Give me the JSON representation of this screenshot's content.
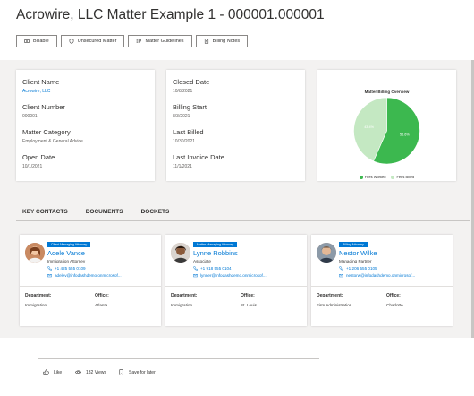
{
  "page": {
    "title": "Acrowire, LLC Matter Example 1 - 000001.000001"
  },
  "toolbar": {
    "buttons": [
      {
        "label": "Billable",
        "icon": "billable-icon"
      },
      {
        "label": "Unsecured Matter",
        "icon": "shield-icon"
      },
      {
        "label": "Matter Guidelines",
        "icon": "guidelines-icon"
      },
      {
        "label": "Billing Notes",
        "icon": "document-icon"
      }
    ]
  },
  "details": {
    "left": [
      {
        "label": "Client Name",
        "value": "Acrowire, LLC",
        "link": true
      },
      {
        "label": "Client Number",
        "value": "000001"
      },
      {
        "label": "Matter Category",
        "value": "Employment & General Advice"
      },
      {
        "label": "Open Date",
        "value": "10/1/2021"
      }
    ],
    "right": [
      {
        "label": "Closed Date",
        "value": "10/8/2021"
      },
      {
        "label": "Billing Start",
        "value": "8/3/2021"
      },
      {
        "label": "Last Billed",
        "value": "10/30/2021"
      },
      {
        "label": "Last Invoice Date",
        "value": "11/1/2021"
      }
    ]
  },
  "chart_data": {
    "type": "pie",
    "title": "Matter Billing Overview",
    "slices": [
      {
        "name": "Fees Worked",
        "value": 56.6,
        "label": "56.6%",
        "color": "#3cb84f"
      },
      {
        "name": "Fees Billed",
        "value": 43.4,
        "label": "43.4%",
        "color": "#c4e8c2"
      }
    ],
    "legend_position": "bottom"
  },
  "tabs": [
    {
      "label": "KEY CONTACTS",
      "active": true
    },
    {
      "label": "DOCUMENTS",
      "active": false
    },
    {
      "label": "DOCKETS",
      "active": false
    }
  ],
  "contact_labels": {
    "department": "Department:",
    "office": "Office:"
  },
  "contacts": [
    {
      "badge": "Client Managing Attorney",
      "name": "Adele Vance",
      "role": "Immigration Attorney",
      "phone": "+1 425 555 0109",
      "email": "adelev@infodashdemo.onmicrosof...",
      "department": "Immigration",
      "office": "Atlanta"
    },
    {
      "badge": "Matter Managing Attorney",
      "name": "Lynne Robbins",
      "role": "Associate",
      "phone": "+1 918 555 0104",
      "email": "lynner@infodashdemo.onmicrosof...",
      "department": "Immigration",
      "office": "St. Louis"
    },
    {
      "badge": "Billing Attorney",
      "name": "Nestor Wilke",
      "role": "Managing Partner",
      "phone": "+1 206 555 0105",
      "email": "nestorw@infodashdemo.onmicrosof...",
      "department": "Firm Administration",
      "office": "Charlotte"
    }
  ],
  "footer": {
    "like": "Like",
    "views": "132 Views",
    "save": "Save for later"
  },
  "colors": {
    "accent": "#0078d4",
    "background_band": "#f3f2f1",
    "fees_worked": "#3cb84f",
    "fees_billed": "#c4e8c2"
  }
}
